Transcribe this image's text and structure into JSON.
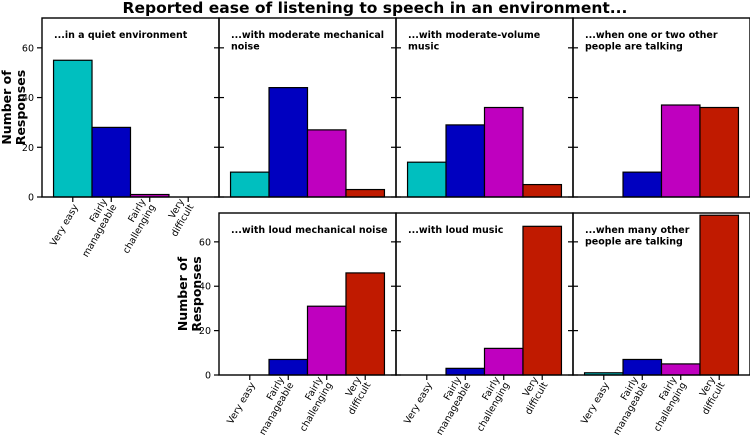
{
  "title": "Reported ease of listening to speech in an environment...",
  "colors": {
    "very_easy": "#00BFBF",
    "fairly_manageable": "#0000C0",
    "fairly_challenging": "#BF00BF",
    "very_difficult": "#C01A00"
  },
  "chart_data": {
    "type": "bar",
    "categories": [
      "Very easy",
      "Fairly manageable",
      "Fairly challenging",
      "Very difficult"
    ],
    "category_label_lines": [
      [
        "Very easy"
      ],
      [
        "Fairly",
        "manageable"
      ],
      [
        "Fairly",
        "challenging"
      ],
      [
        "Very",
        "difficult"
      ]
    ],
    "ylabel_lines": [
      "Number of",
      "Responses"
    ],
    "top_row": {
      "ylim": [
        0,
        72
      ],
      "yticks": [
        0,
        20,
        40,
        60
      ],
      "panels": [
        {
          "title_lines": [
            "...in a quiet environment"
          ],
          "values": [
            55,
            28,
            1,
            0
          ]
        },
        {
          "title_lines": [
            "...with moderate mechanical",
            "noise"
          ],
          "values": [
            10,
            44,
            27,
            3
          ]
        },
        {
          "title_lines": [
            "...with moderate-volume",
            "music"
          ],
          "values": [
            14,
            29,
            36,
            5
          ]
        },
        {
          "title_lines": [
            "...when one or two other",
            "people are talking"
          ],
          "values": [
            0,
            10,
            37,
            36
          ]
        }
      ]
    },
    "bottom_row": {
      "ylim": [
        0,
        73
      ],
      "yticks": [
        0,
        20,
        40,
        60
      ],
      "panels": [
        {
          "title_lines": [
            "...with loud mechanical noise"
          ],
          "values": [
            0,
            7,
            31,
            46
          ]
        },
        {
          "title_lines": [
            "...with loud music"
          ],
          "values": [
            0,
            3,
            12,
            67
          ]
        },
        {
          "title_lines": [
            "...when many other",
            "people are talking"
          ],
          "values": [
            1,
            7,
            5,
            72
          ]
        }
      ]
    },
    "grid": false,
    "legend": "none"
  }
}
